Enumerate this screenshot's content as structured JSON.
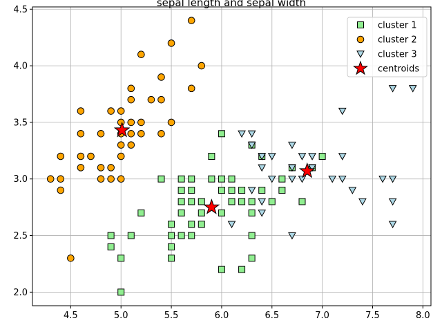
{
  "chart_data": {
    "type": "scatter",
    "title": "sepal length and sepal width",
    "xlabel": "",
    "ylabel": "",
    "xlim": [
      4.12,
      8.08
    ],
    "ylim": [
      1.88,
      4.52
    ],
    "xticks": [
      "4.5",
      "5.0",
      "5.5",
      "6.0",
      "6.5",
      "7.0",
      "7.5",
      "8.0"
    ],
    "yticks": [
      "2.0",
      "2.5",
      "3.0",
      "3.5",
      "4.0",
      "4.5"
    ],
    "grid": true,
    "legend_position": "top-right",
    "series": [
      {
        "name": "cluster 1",
        "marker": "square",
        "color": "#90ee90",
        "points": [
          [
            5.0,
            2.0
          ],
          [
            5.0,
            2.3
          ],
          [
            4.9,
            2.4
          ],
          [
            4.9,
            2.5
          ],
          [
            5.1,
            2.5
          ],
          [
            5.2,
            2.7
          ],
          [
            5.4,
            3.0
          ],
          [
            5.5,
            2.3
          ],
          [
            5.5,
            2.4
          ],
          [
            5.5,
            2.5
          ],
          [
            5.5,
            2.6
          ],
          [
            5.6,
            2.5
          ],
          [
            5.6,
            2.7
          ],
          [
            5.6,
            2.8
          ],
          [
            5.6,
            2.9
          ],
          [
            5.6,
            3.0
          ],
          [
            5.7,
            2.5
          ],
          [
            5.7,
            2.6
          ],
          [
            5.7,
            2.8
          ],
          [
            5.7,
            2.9
          ],
          [
            5.7,
            3.0
          ],
          [
            5.8,
            2.6
          ],
          [
            5.8,
            2.7
          ],
          [
            5.8,
            2.8
          ],
          [
            5.9,
            3.0
          ],
          [
            5.9,
            3.2
          ],
          [
            6.0,
            2.2
          ],
          [
            6.0,
            2.7
          ],
          [
            6.0,
            2.9
          ],
          [
            6.0,
            3.0
          ],
          [
            6.0,
            3.4
          ],
          [
            6.1,
            2.8
          ],
          [
            6.1,
            2.9
          ],
          [
            6.1,
            3.0
          ],
          [
            6.2,
            2.2
          ],
          [
            6.2,
            2.8
          ],
          [
            6.2,
            2.9
          ],
          [
            6.3,
            2.3
          ],
          [
            6.3,
            2.5
          ],
          [
            6.3,
            2.7
          ],
          [
            6.3,
            2.8
          ],
          [
            6.3,
            3.3
          ],
          [
            6.4,
            2.9
          ],
          [
            6.4,
            3.2
          ],
          [
            6.5,
            2.8
          ],
          [
            6.6,
            2.9
          ],
          [
            6.6,
            3.0
          ],
          [
            6.7,
            3.1
          ],
          [
            6.8,
            2.8
          ],
          [
            6.9,
            3.1
          ],
          [
            7.0,
            3.2
          ]
        ]
      },
      {
        "name": "cluster 2",
        "marker": "circle",
        "color": "#ffa500",
        "points": [
          [
            4.3,
            3.0
          ],
          [
            4.4,
            2.9
          ],
          [
            4.4,
            3.0
          ],
          [
            4.4,
            3.2
          ],
          [
            4.5,
            2.3
          ],
          [
            4.6,
            3.1
          ],
          [
            4.6,
            3.2
          ],
          [
            4.6,
            3.4
          ],
          [
            4.6,
            3.6
          ],
          [
            4.7,
            3.2
          ],
          [
            4.8,
            3.0
          ],
          [
            4.8,
            3.1
          ],
          [
            4.8,
            3.4
          ],
          [
            4.9,
            3.0
          ],
          [
            4.9,
            3.1
          ],
          [
            4.9,
            3.6
          ],
          [
            5.0,
            3.0
          ],
          [
            5.0,
            3.2
          ],
          [
            5.0,
            3.3
          ],
          [
            5.0,
            3.4
          ],
          [
            5.0,
            3.5
          ],
          [
            5.0,
            3.6
          ],
          [
            5.1,
            3.3
          ],
          [
            5.1,
            3.4
          ],
          [
            5.1,
            3.5
          ],
          [
            5.1,
            3.7
          ],
          [
            5.1,
            3.8
          ],
          [
            5.2,
            3.4
          ],
          [
            5.2,
            3.5
          ],
          [
            5.2,
            4.1
          ],
          [
            5.3,
            3.7
          ],
          [
            5.4,
            3.4
          ],
          [
            5.4,
            3.7
          ],
          [
            5.4,
            3.9
          ],
          [
            5.5,
            3.5
          ],
          [
            5.5,
            4.2
          ],
          [
            5.7,
            3.8
          ],
          [
            5.7,
            4.4
          ],
          [
            5.8,
            4.0
          ]
        ]
      },
      {
        "name": "cluster 3",
        "marker": "triangle_down",
        "color": "#add8e6",
        "points": [
          [
            6.1,
            2.6
          ],
          [
            6.2,
            3.4
          ],
          [
            6.3,
            2.9
          ],
          [
            6.3,
            3.3
          ],
          [
            6.3,
            3.4
          ],
          [
            6.4,
            2.7
          ],
          [
            6.4,
            2.8
          ],
          [
            6.4,
            3.1
          ],
          [
            6.4,
            3.2
          ],
          [
            6.5,
            3.0
          ],
          [
            6.5,
            3.2
          ],
          [
            6.7,
            2.5
          ],
          [
            6.7,
            3.0
          ],
          [
            6.7,
            3.1
          ],
          [
            6.7,
            3.3
          ],
          [
            6.8,
            3.0
          ],
          [
            6.8,
            3.2
          ],
          [
            6.9,
            3.1
          ],
          [
            6.9,
            3.2
          ],
          [
            7.1,
            3.0
          ],
          [
            7.2,
            3.0
          ],
          [
            7.2,
            3.2
          ],
          [
            7.2,
            3.6
          ],
          [
            7.3,
            2.9
          ],
          [
            7.4,
            2.8
          ],
          [
            7.6,
            3.0
          ],
          [
            7.7,
            2.6
          ],
          [
            7.7,
            2.8
          ],
          [
            7.7,
            3.0
          ],
          [
            7.7,
            3.8
          ],
          [
            7.9,
            3.8
          ]
        ]
      },
      {
        "name": "centroids",
        "marker": "star",
        "color": "#ff0000",
        "points": [
          [
            5.9,
            2.75
          ],
          [
            5.01,
            3.43
          ],
          [
            6.85,
            3.07
          ]
        ]
      }
    ]
  }
}
